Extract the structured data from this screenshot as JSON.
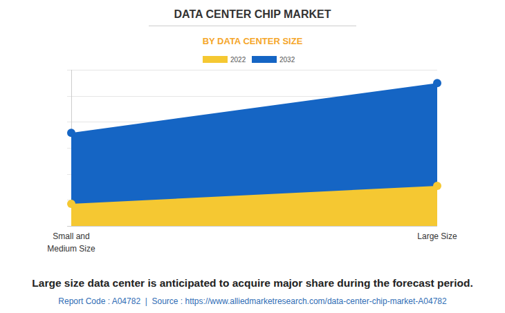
{
  "chart_data": {
    "type": "area",
    "title": "DATA CENTER CHIP MARKET",
    "subtitle": "BY DATA CENTER SIZE",
    "categories": [
      "Small and Medium Size",
      "Large Size"
    ],
    "series": [
      {
        "name": "2022",
        "color": "#f5c832",
        "values": [
          8.5,
          15.4
        ]
      },
      {
        "name": "2032",
        "color": "#1565c4",
        "values": [
          35.8,
          54.9
        ]
      }
    ],
    "ylim": [
      0,
      60
    ],
    "yticks": [
      0,
      10,
      20,
      30,
      40,
      50,
      60
    ],
    "grid": true,
    "tick_labels": "x",
    "legend": "top",
    "stacked": false,
    "caption": "Large size data center is anticipated to acquire major share during the forecast period.",
    "source": "Report Code : A04782  |  Source : https://www.alliedmarketresearch.com/data-center-chip-market-A04782"
  }
}
